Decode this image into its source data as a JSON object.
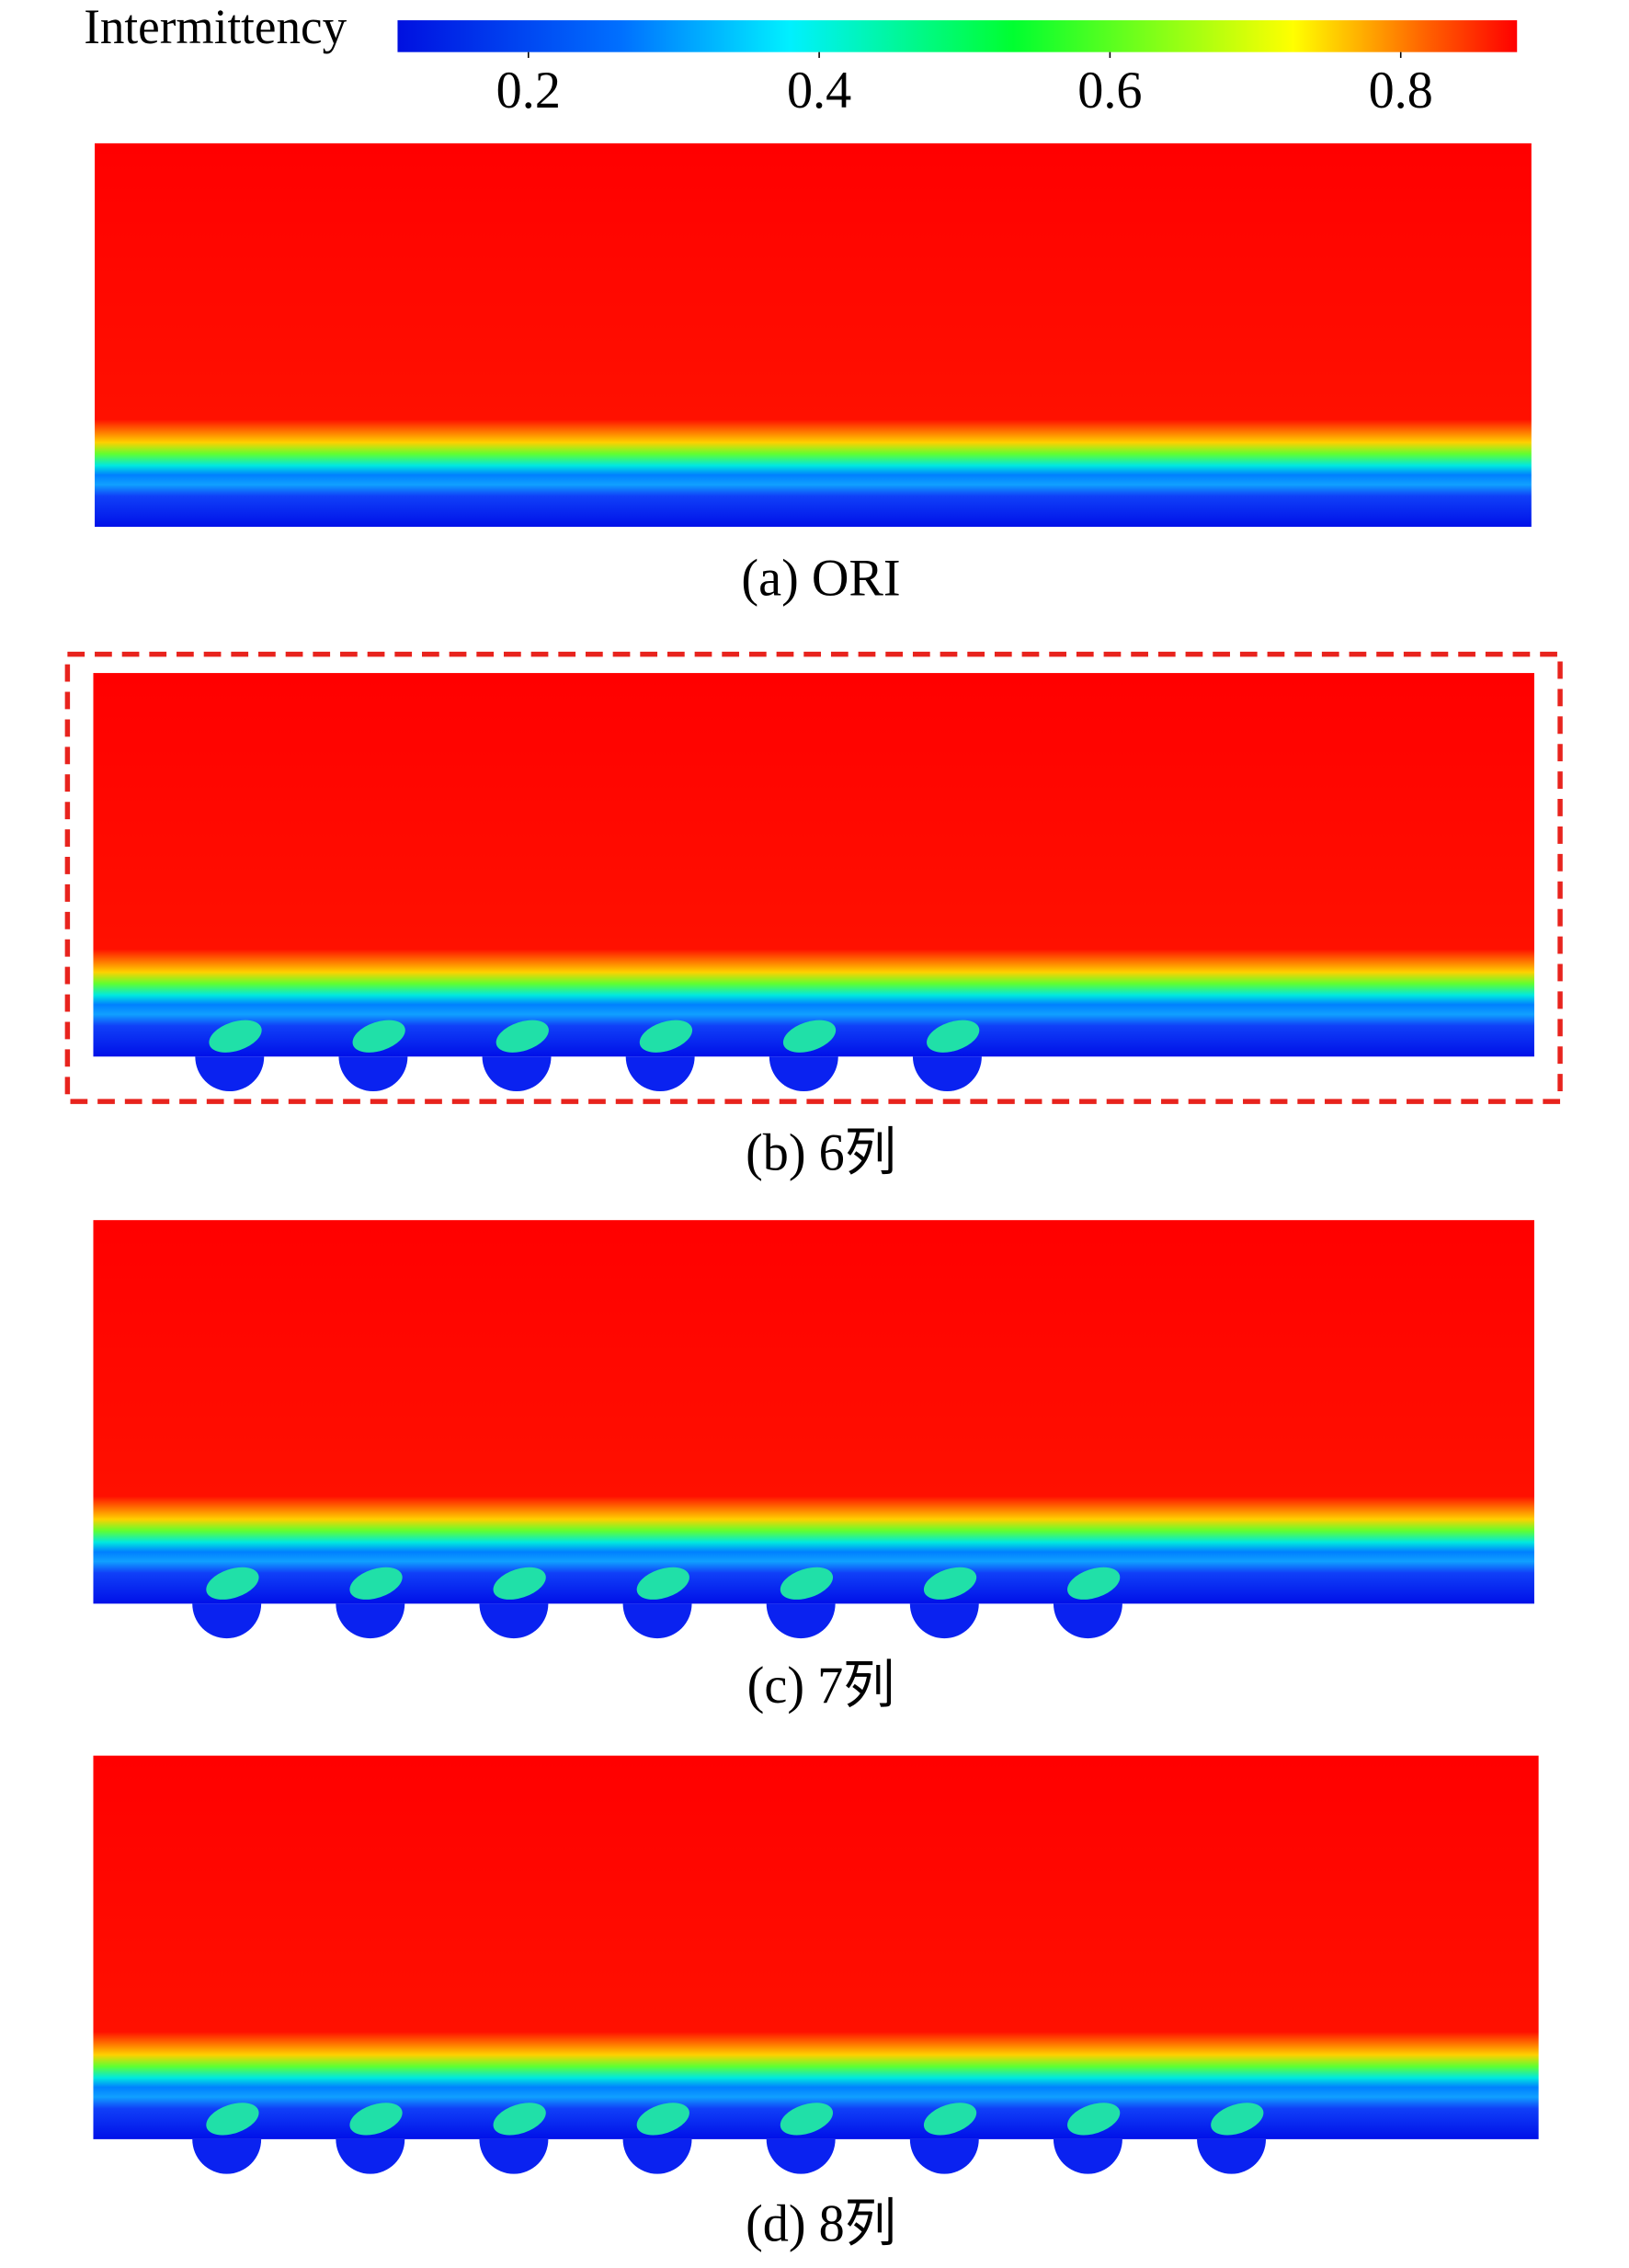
{
  "colorbar": {
    "label": "Intermittency",
    "clim": [
      0.11,
      0.88
    ],
    "ticks": [
      0.2,
      0.4,
      0.6,
      0.8
    ]
  },
  "panels": [
    {
      "caption": "(a) ORI",
      "dimples": 0,
      "highlighted": false
    },
    {
      "caption": "(b) 6列",
      "dimples": 6,
      "highlighted": true
    },
    {
      "caption": "(c) 7列",
      "dimples": 7,
      "highlighted": false
    },
    {
      "caption": "(d) 8列",
      "dimples": 8,
      "highlighted": false
    }
  ]
}
